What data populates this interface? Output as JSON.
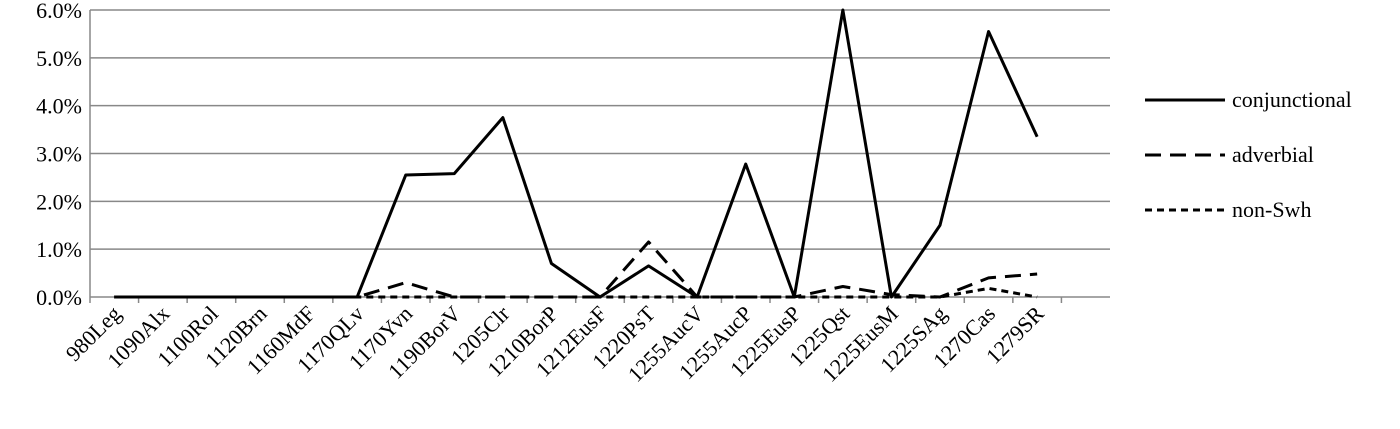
{
  "chart_data": {
    "type": "line",
    "categories": [
      "980Leg",
      "1090Alx",
      "1100Rol",
      "1120Brn",
      "1160MdF",
      "1170QLv",
      "1170Yvn",
      "1190BorV",
      "1205Clr",
      "1210BorP",
      "1212EusF",
      "1220PsT",
      "1255AucV",
      "1255AucP",
      "1225EusP",
      "1225Qst",
      "1225EusM",
      "1225SAg",
      "1270Cas",
      "1279SR",
      null
    ],
    "series": [
      {
        "name": "conjunctional",
        "color": "#000000",
        "dash": "none",
        "values": [
          0,
          0,
          0,
          0,
          0,
          0,
          2.55,
          2.58,
          3.75,
          0.7,
          0,
          0.65,
          0,
          2.78,
          0,
          6.0,
          0,
          1.5,
          5.55,
          3.35,
          null
        ]
      },
      {
        "name": "adverbial",
        "color": "#000000",
        "dash": "16,9",
        "values": [
          0,
          0,
          0,
          0,
          0,
          0,
          0.3,
          0,
          0,
          0,
          0,
          1.15,
          0,
          0,
          0,
          0.22,
          0.05,
          0,
          0.4,
          0.48,
          null
        ]
      },
      {
        "name": "non-Swh",
        "color": "#000000",
        "dash": "7,5",
        "values": [
          0,
          0,
          0,
          0,
          0,
          0,
          0,
          0,
          0,
          0,
          0,
          0,
          0,
          0,
          0,
          0,
          0,
          0,
          0.18,
          0,
          null
        ]
      }
    ],
    "ylim": [
      0,
      6
    ],
    "yticks": [
      {
        "value": 0,
        "label": "0.0%"
      },
      {
        "value": 1,
        "label": "1.0%"
      },
      {
        "value": 2,
        "label": "2.0%"
      },
      {
        "value": 3,
        "label": "3.0%"
      },
      {
        "value": 4,
        "label": "4.0%"
      },
      {
        "value": 5,
        "label": "5.0%"
      },
      {
        "value": 6,
        "label": "6.0%"
      }
    ],
    "grid": true,
    "legend": "right"
  }
}
